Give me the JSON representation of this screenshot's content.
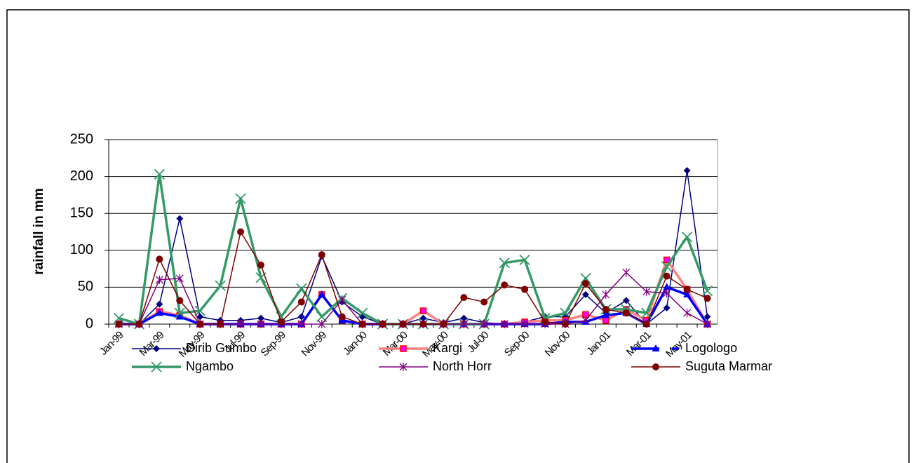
{
  "chart_data": {
    "type": "line",
    "y_label": "rainfall in mm",
    "categories": [
      "Jan-99",
      null,
      "Mar-99",
      null,
      "May-99",
      null,
      "Jul-99",
      null,
      "Sep-99",
      null,
      "Nov-99",
      null,
      "Jan-00",
      null,
      "Mar-00",
      null,
      "May-00",
      null,
      "Jul-00",
      null,
      "Sep-00",
      null,
      "Nov-00",
      null,
      "Jan-01",
      null,
      "Mar-01",
      null,
      "May-01",
      null
    ],
    "ylim": [
      0,
      250
    ],
    "yticks": [
      0,
      50,
      100,
      150,
      200,
      250
    ],
    "grid": true,
    "legend_position": "bottom",
    "series": [
      {
        "name": "Dirib Gumbo",
        "color": "#000080",
        "marker": "diamond",
        "line_width": 1.5,
        "values": [
          0,
          0,
          27,
          143,
          10,
          5,
          5,
          8,
          2,
          10,
          92,
          30,
          10,
          0,
          0,
          8,
          2,
          8,
          2,
          0,
          3,
          10,
          10,
          40,
          15,
          32,
          0,
          22,
          208,
          10
        ]
      },
      {
        "name": "Kargi",
        "color": "#ff8080",
        "marker": "square",
        "line_width": 3.5,
        "values": [
          0,
          0,
          17,
          12,
          0,
          0,
          0,
          0,
          0,
          0,
          40,
          5,
          0,
          0,
          0,
          18,
          0,
          0,
          0,
          0,
          3,
          5,
          5,
          13,
          5,
          20,
          5,
          87,
          47,
          0
        ]
      },
      {
        "name": "Logologo",
        "color": "#0000ff",
        "marker": "triangle",
        "line_width": 3.5,
        "dash": true,
        "values": [
          0,
          0,
          15,
          10,
          0,
          0,
          0,
          0,
          0,
          0,
          40,
          5,
          0,
          0,
          0,
          0,
          0,
          0,
          0,
          0,
          0,
          0,
          3,
          3,
          12,
          15,
          0,
          50,
          40,
          0
        ]
      },
      {
        "name": "Ngambo",
        "color": "#339966",
        "marker": "x",
        "line_width": 3.5,
        "values": [
          8,
          0,
          203,
          15,
          18,
          52,
          170,
          63,
          10,
          48,
          10,
          35,
          15,
          0,
          0,
          0,
          0,
          0,
          0,
          83,
          87,
          8,
          15,
          62,
          20,
          20,
          15,
          78,
          118,
          45
        ]
      },
      {
        "name": "North Horr",
        "color": "#800080",
        "marker": "star",
        "line_width": 1.5,
        "values": [
          0,
          0,
          60,
          62,
          0,
          0,
          0,
          0,
          0,
          0,
          0,
          33,
          0,
          0,
          0,
          0,
          0,
          0,
          0,
          0,
          0,
          0,
          0,
          5,
          40,
          70,
          44,
          42,
          15,
          0
        ]
      },
      {
        "name": "Suguta Marmar",
        "color": "#800000",
        "marker": "circle",
        "line_width": 1.5,
        "values": [
          0,
          0,
          88,
          32,
          0,
          0,
          125,
          80,
          3,
          30,
          94,
          10,
          0,
          0,
          0,
          0,
          0,
          36,
          30,
          53,
          47,
          3,
          0,
          55,
          20,
          15,
          0,
          65,
          47,
          35
        ]
      }
    ]
  }
}
